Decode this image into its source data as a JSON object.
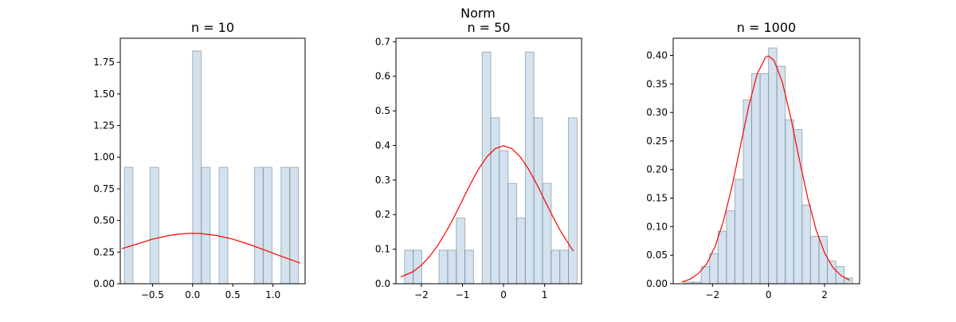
{
  "figure": {
    "suptitle": "Norm"
  },
  "colors": {
    "bar_fill": "#aecbe0",
    "bar_edge": "#6f8796",
    "curve": "#ff0000"
  },
  "chart_data": [
    {
      "type": "bar",
      "title": "n = 10",
      "xlim": [
        -0.9,
        1.4
      ],
      "ylim": [
        0,
        1.94
      ],
      "xticks": [
        -0.5,
        0.0,
        0.5,
        1.0
      ],
      "xtick_labels": [
        "−0.5",
        "0.0",
        "0.5",
        "1.0"
      ],
      "yticks": [
        0,
        0.25,
        0.5,
        0.75,
        1.0,
        1.25,
        1.5,
        1.75
      ],
      "ytick_labels": [
        "0.00",
        "0.25",
        "0.50",
        "0.75",
        "1.00",
        "1.25",
        "1.50",
        "1.75"
      ],
      "bin_width": 0.108,
      "bins": [
        {
          "x0": -0.85,
          "value": 0.92
        },
        {
          "x0": -0.53,
          "value": 0.92
        },
        {
          "x0": 0.0,
          "value": 1.84
        },
        {
          "x0": 0.11,
          "value": 0.92
        },
        {
          "x0": 0.33,
          "value": 0.92
        },
        {
          "x0": 0.77,
          "value": 0.92
        },
        {
          "x0": 0.88,
          "value": 0.92
        },
        {
          "x0": 1.1,
          "value": 0.92
        },
        {
          "x0": 1.21,
          "value": 0.92
        }
      ],
      "curve": {
        "x": [
          -0.88,
          -0.7,
          -0.5,
          -0.3,
          -0.1,
          0.0,
          0.1,
          0.3,
          0.5,
          0.7,
          0.9,
          1.1,
          1.34
        ],
        "y": [
          0.278,
          0.312,
          0.352,
          0.381,
          0.397,
          0.399,
          0.397,
          0.381,
          0.352,
          0.312,
          0.266,
          0.218,
          0.163
        ]
      }
    },
    {
      "type": "bar",
      "title": "n = 50",
      "xlim": [
        -2.62,
        1.9
      ],
      "ylim": [
        0,
        0.71
      ],
      "xticks": [
        -2,
        -1,
        0,
        1
      ],
      "xtick_labels": [
        "−2",
        "−1",
        "0",
        "1"
      ],
      "yticks": [
        0,
        0.1,
        0.2,
        0.3,
        0.4,
        0.5,
        0.6,
        0.7
      ],
      "ytick_labels": [
        "0.0",
        "0.1",
        "0.2",
        "0.3",
        "0.4",
        "0.5",
        "0.6",
        "0.7"
      ],
      "bin_width": 0.21,
      "bins": [
        {
          "x0": -2.41,
          "value": 0.097
        },
        {
          "x0": -2.2,
          "value": 0.097
        },
        {
          "x0": -1.57,
          "value": 0.097
        },
        {
          "x0": -1.36,
          "value": 0.097
        },
        {
          "x0": -1.15,
          "value": 0.19
        },
        {
          "x0": -0.94,
          "value": 0.097
        },
        {
          "x0": -0.52,
          "value": 0.67
        },
        {
          "x0": -0.31,
          "value": 0.48
        },
        {
          "x0": -0.1,
          "value": 0.385
        },
        {
          "x0": 0.11,
          "value": 0.29
        },
        {
          "x0": 0.32,
          "value": 0.19
        },
        {
          "x0": 0.53,
          "value": 0.67
        },
        {
          "x0": 0.74,
          "value": 0.48
        },
        {
          "x0": 0.95,
          "value": 0.29
        },
        {
          "x0": 1.16,
          "value": 0.097
        },
        {
          "x0": 1.37,
          "value": 0.097
        },
        {
          "x0": 1.58,
          "value": 0.48
        }
      ],
      "curve": {
        "x": [
          -2.5,
          -2.2,
          -2.0,
          -1.8,
          -1.6,
          -1.4,
          -1.2,
          -1.0,
          -0.8,
          -0.6,
          -0.4,
          -0.2,
          0.0,
          0.2,
          0.4,
          0.6,
          0.8,
          1.0,
          1.2,
          1.4,
          1.7
        ],
        "y": [
          0.02,
          0.035,
          0.054,
          0.079,
          0.111,
          0.15,
          0.194,
          0.242,
          0.29,
          0.333,
          0.368,
          0.391,
          0.399,
          0.391,
          0.368,
          0.333,
          0.29,
          0.242,
          0.194,
          0.15,
          0.094
        ]
      }
    },
    {
      "type": "bar",
      "title": "n = 1000",
      "xlim": [
        -3.4,
        3.25
      ],
      "ylim": [
        0,
        0.43
      ],
      "xticks": [
        -2,
        0,
        2
      ],
      "xtick_labels": [
        "−2",
        "0",
        "2"
      ],
      "yticks": [
        0,
        0.05,
        0.1,
        0.15,
        0.2,
        0.25,
        0.3,
        0.35,
        0.4
      ],
      "ytick_labels": [
        "0.00",
        "0.05",
        "0.10",
        "0.15",
        "0.20",
        "0.25",
        "0.30",
        "0.35",
        "0.40"
      ],
      "bin_width": 0.3,
      "bins": [
        {
          "x0": -3.0,
          "value": 0.003
        },
        {
          "x0": -2.7,
          "value": 0.003
        },
        {
          "x0": -2.4,
          "value": 0.03
        },
        {
          "x0": -2.1,
          "value": 0.053
        },
        {
          "x0": -1.8,
          "value": 0.092
        },
        {
          "x0": -1.5,
          "value": 0.128
        },
        {
          "x0": -1.2,
          "value": 0.183
        },
        {
          "x0": -0.9,
          "value": 0.322
        },
        {
          "x0": -0.6,
          "value": 0.368
        },
        {
          "x0": -0.3,
          "value": 0.368
        },
        {
          "x0": 0.0,
          "value": 0.413
        },
        {
          "x0": 0.3,
          "value": 0.381
        },
        {
          "x0": 0.6,
          "value": 0.287
        },
        {
          "x0": 0.9,
          "value": 0.27
        },
        {
          "x0": 1.2,
          "value": 0.138
        },
        {
          "x0": 1.5,
          "value": 0.083
        },
        {
          "x0": 1.8,
          "value": 0.083
        },
        {
          "x0": 2.1,
          "value": 0.04
        },
        {
          "x0": 2.4,
          "value": 0.03
        },
        {
          "x0": 2.7,
          "value": 0.01
        }
      ],
      "curve": {
        "x": [
          -3.1,
          -2.8,
          -2.5,
          -2.2,
          -1.9,
          -1.6,
          -1.3,
          -1.0,
          -0.7,
          -0.4,
          -0.1,
          0.0,
          0.2,
          0.5,
          0.8,
          1.1,
          1.4,
          1.7,
          2.0,
          2.3,
          2.6,
          2.9
        ],
        "y": [
          0.003,
          0.008,
          0.018,
          0.035,
          0.066,
          0.111,
          0.171,
          0.242,
          0.312,
          0.368,
          0.397,
          0.399,
          0.391,
          0.352,
          0.29,
          0.218,
          0.15,
          0.094,
          0.054,
          0.028,
          0.014,
          0.006
        ]
      }
    }
  ]
}
